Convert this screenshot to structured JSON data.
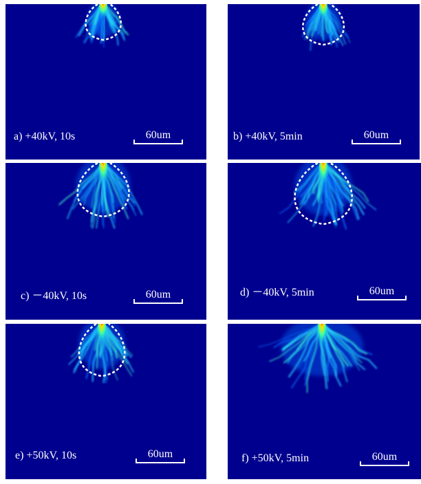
{
  "panels": [
    {
      "label": "a) +40kV, 10s",
      "scale": "60um"
    },
    {
      "label": "b) +40kV, 5min",
      "scale": "60um"
    },
    {
      "label": "c) －40kV, 10s",
      "scale": "60um"
    },
    {
      "label": "d) －40kV, 5min",
      "scale": "60um"
    },
    {
      "label": "e) +50kV, 10s",
      "scale": "60um"
    },
    {
      "label": "f) +50kV, 5min",
      "scale": "60um"
    }
  ]
}
